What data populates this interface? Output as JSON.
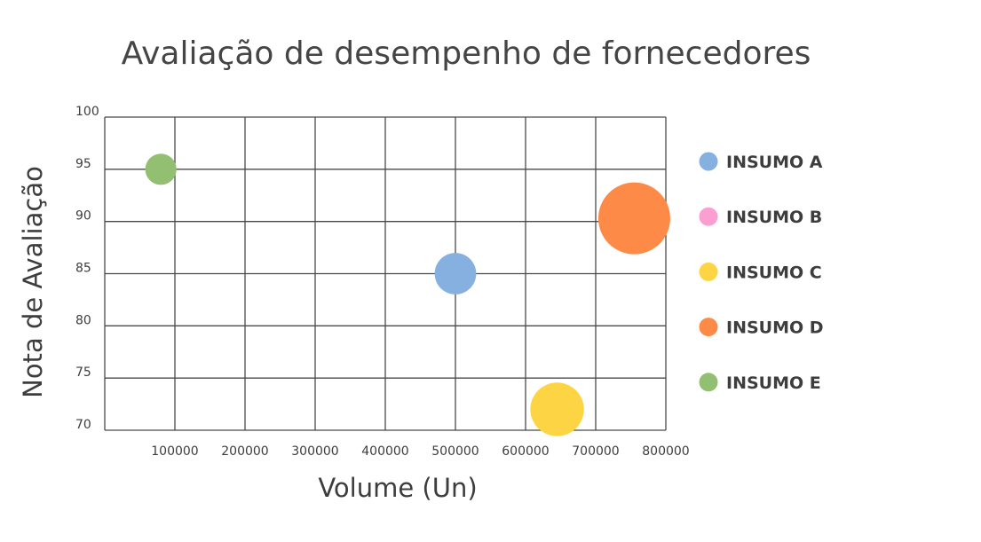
{
  "chart_data": {
    "type": "scatter",
    "variant": "bubble",
    "title": "Avaliação de desempenho de fornecedores",
    "xlabel": "Volume (Un)",
    "ylabel": "Nota de Avaliação",
    "xlim": [
      0,
      800000
    ],
    "ylim": [
      70,
      100
    ],
    "x_ticks": [
      100000,
      200000,
      300000,
      400000,
      500000,
      600000,
      700000,
      800000
    ],
    "x_tick_labels": [
      "100000",
      "200000",
      "300000",
      "400000",
      "500000",
      "600000",
      "700000",
      "800000"
    ],
    "y_ticks": [
      70,
      75,
      80,
      85,
      90,
      95,
      100
    ],
    "y_tick_labels": [
      "70",
      "75",
      "80",
      "85",
      "90",
      "95",
      "100"
    ],
    "grid": true,
    "legend_position": "right",
    "series": [
      {
        "name": "INSUMO A",
        "color": "#85b0e0",
        "x": 500000,
        "y": 85,
        "size": 3
      },
      {
        "name": "INSUMO B",
        "color": "#fb9fd0",
        "x": null,
        "y": null,
        "size": 0
      },
      {
        "name": "INSUMO C",
        "color": "#fdd444",
        "x": 645000,
        "y": 72,
        "size": 5
      },
      {
        "name": "INSUMO D",
        "color": "#fd8b47",
        "x": 755000,
        "y": 90.3,
        "size": 9
      },
      {
        "name": "INSUMO E",
        "color": "#92bf72",
        "x": 80000,
        "y": 95,
        "size": 1.7
      }
    ]
  }
}
